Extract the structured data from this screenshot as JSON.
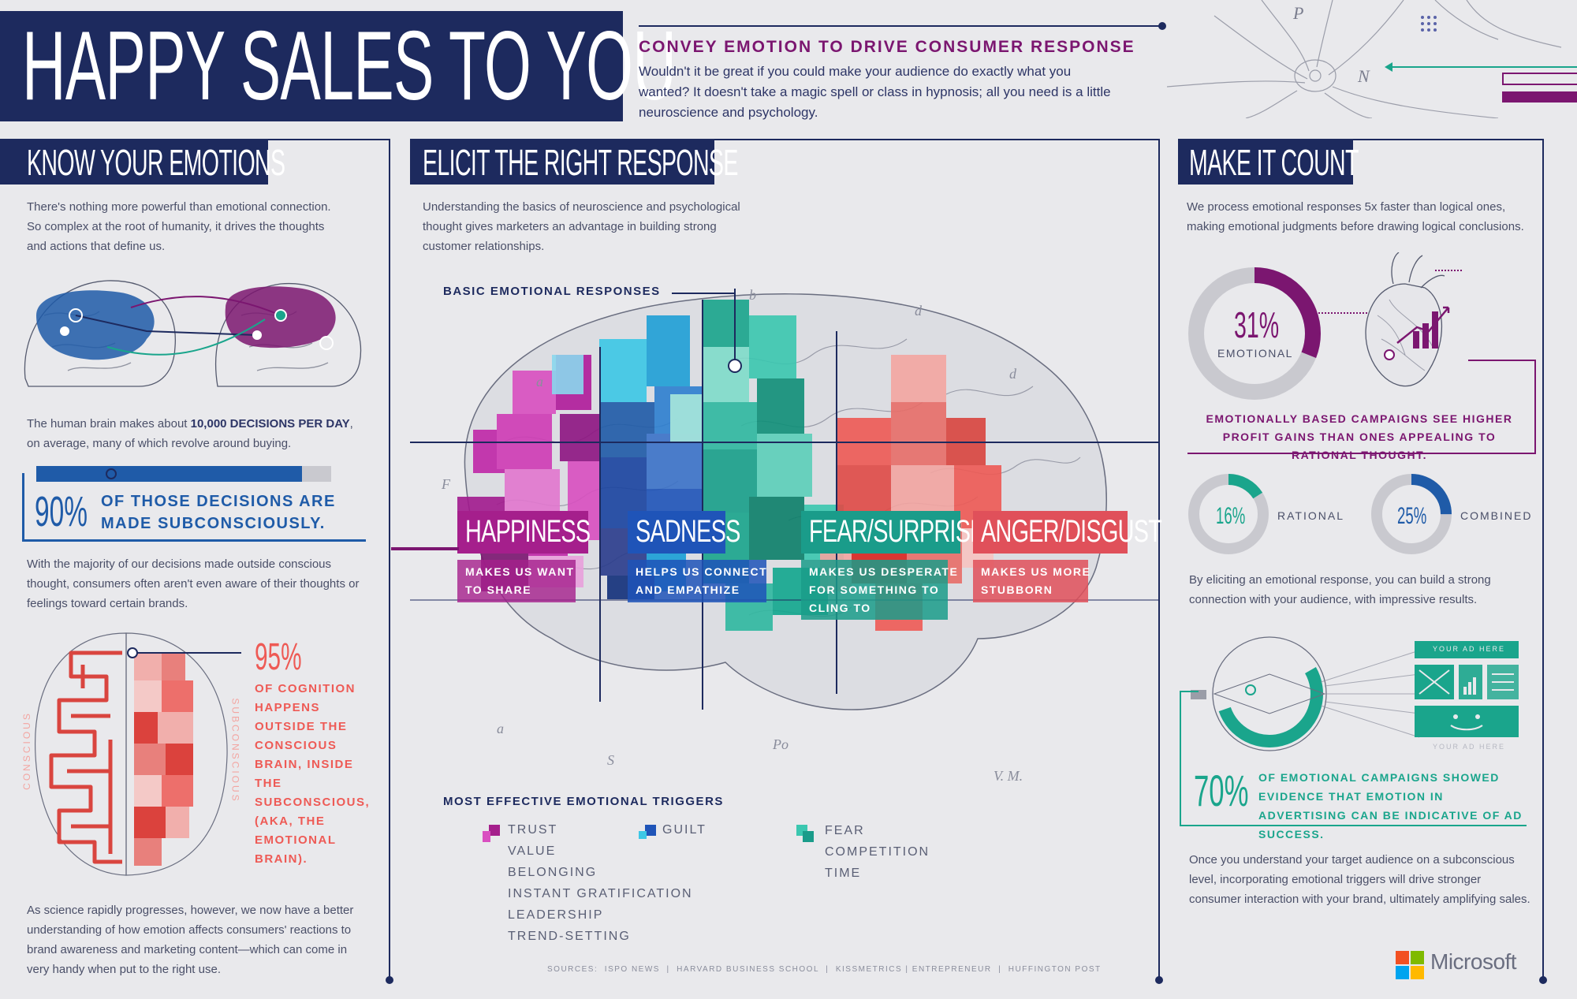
{
  "title": "HAPPY SALES TO YOU",
  "intro": {
    "heading": "CONVEY EMOTION TO DRIVE CONSUMER RESPONSE",
    "text": "Wouldn't it be great if you could make your audience do exactly what you wanted? It doesn't take a magic spell or class in hypnosis; all you need is a little neuroscience and psychology."
  },
  "left": {
    "heading": "KNOW YOUR EMOTIONS",
    "p1": "There's nothing more powerful than emotional connection. So complex at the root of humanity, it drives the thoughts and actions that define us.",
    "p2_pre": "The human brain makes about ",
    "p2_bold": "10,000 DECISIONS PER DAY",
    "p2_post": ", on average, many of which revolve around buying.",
    "stat90_value": "90%",
    "stat90_label": "OF THOSE DECISIONS ARE MADE SUBCONSCIOUSLY.",
    "stat90_fraction": 0.9,
    "p3": "With the majority of our decisions made outside conscious thought, consumers often aren't even aware of their thoughts or feelings toward certain brands.",
    "stat95_value": "95%",
    "stat95_label": "OF COGNITION HAPPENS OUTSIDE THE CONSCIOUS BRAIN, INSIDE THE SUBCONSCIOUS, (AKA, THE EMOTIONAL BRAIN).",
    "conscious_label": "CONSCIOUS",
    "subconscious_label": "SUBCONSCIOUS",
    "p4": "As science rapidly progresses, however, we now have a better understanding of how emotion affects consumers' reactions to brand awareness and marketing content—which can come in very handy when put to the right use."
  },
  "middle": {
    "heading": "ELICIT THE RIGHT RESPONSE",
    "p1": "Understanding the basics of neuroscience and psychological thought gives marketers an advantage in building strong customer relationships.",
    "basic_label": "BASIC EMOTIONAL RESPONSES",
    "emotions": [
      {
        "title": "HAPPINESS",
        "sub": [
          "MAKES US WANT",
          "TO SHARE"
        ],
        "color": "#a51f8c"
      },
      {
        "title": "SADNESS",
        "sub": [
          "HELPS US CONNECT",
          "AND EMPATHIZE"
        ],
        "color": "#1f54b8"
      },
      {
        "title": "FEAR/SURPRISE",
        "sub": [
          "MAKES US DESPERATE",
          "FOR SOMETHING TO",
          "CLING TO"
        ],
        "color": "#1a9c8a"
      },
      {
        "title": "ANGER/DISGUST",
        "sub": [
          "MAKES US MORE",
          "STUBBORN"
        ],
        "color": "#e0505a"
      }
    ],
    "triggers_label": "MOST EFFECTIVE EMOTIONAL TRIGGERS",
    "triggers_col1": [
      "TRUST",
      "VALUE",
      "BELONGING",
      "INSTANT GRATIFICATION",
      "LEADERSHIP",
      "TREND-SETTING"
    ],
    "triggers_col2": [
      "GUILT"
    ],
    "triggers_col3": [
      "FEAR",
      "COMPETITION",
      "TIME"
    ],
    "sources": "SOURCES:  ISPO NEWS  |  HARVARD BUSINESS SCHOOL  |  KISSMETRICS | ENTREPRENEUR  |  HUFFINGTON POST"
  },
  "right": {
    "heading": "MAKE IT COUNT",
    "p1": "We process emotional responses 5x faster than logical ones, making emotional judgments before drawing logical conclusions.",
    "emotional_value": "31%",
    "emotional_label": "EMOTIONAL",
    "emotional_fraction": 0.31,
    "profit_text": "EMOTIONALLY BASED CAMPAIGNS SEE HIGHER PROFIT GAINS THAN ONES APPEALING TO RATIONAL THOUGHT.",
    "rational_value": "16%",
    "rational_label": "RATIONAL",
    "rational_fraction": 0.16,
    "combined_value": "25%",
    "combined_label": "COMBINED",
    "combined_fraction": 0.25,
    "p2": "By eliciting an emotional response, you can build a strong connection with your audience, with impressive results.",
    "ad_label_top": "YOUR AD HERE",
    "ad_label_bottom": "YOUR AD HERE",
    "stat70_value": "70%",
    "stat70_label": "OF EMOTIONAL CAMPAIGNS SHOWED EVIDENCE THAT EMOTION IN ADVERTISING CAN BE INDICATIVE OF AD SUCCESS.",
    "p3": "Once you understand your target audience on a subconscious level, incorporating emotional triggers will drive stronger consumer interaction with your brand, ultimately amplifying sales."
  },
  "brand": "Microsoft",
  "colors": {
    "navy": "#1d2a5e",
    "purple": "#7b1670",
    "coral": "#ee5a55",
    "teal": "#1aa58c",
    "blue": "#1f5ba8"
  }
}
